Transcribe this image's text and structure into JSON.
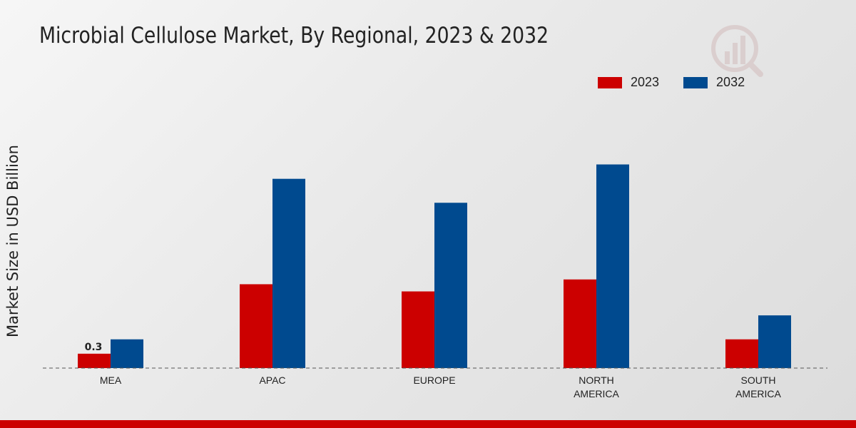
{
  "colors": {
    "series_2023": "#cc0000",
    "series_2032": "#004a8f",
    "baseline": "#555555",
    "text": "#222222",
    "bottom_bar": "#cc0000",
    "logo": "#c8a4a4"
  },
  "logo": {
    "icon": "brand-logo-icon"
  },
  "chart_data": {
    "type": "bar",
    "title": "Microbial Cellulose Market, By Regional, 2023 & 2032",
    "xlabel": "",
    "ylabel": "Market Size in USD Billion",
    "categories": [
      [
        "MEA"
      ],
      [
        "APAC"
      ],
      [
        "EUROPE"
      ],
      [
        "NORTH",
        "AMERICA"
      ],
      [
        "SOUTH",
        "AMERICA"
      ]
    ],
    "series": [
      {
        "name": "2023",
        "values": [
          0.3,
          1.75,
          1.6,
          1.85,
          0.6
        ]
      },
      {
        "name": "2032",
        "values": [
          0.6,
          3.95,
          3.45,
          4.25,
          1.1
        ]
      }
    ],
    "data_labels": [
      {
        "series": 0,
        "index": 0,
        "text": "0.3"
      }
    ],
    "ylim": [
      0,
      5.3
    ],
    "grid": false,
    "legend_position": "top-right"
  }
}
